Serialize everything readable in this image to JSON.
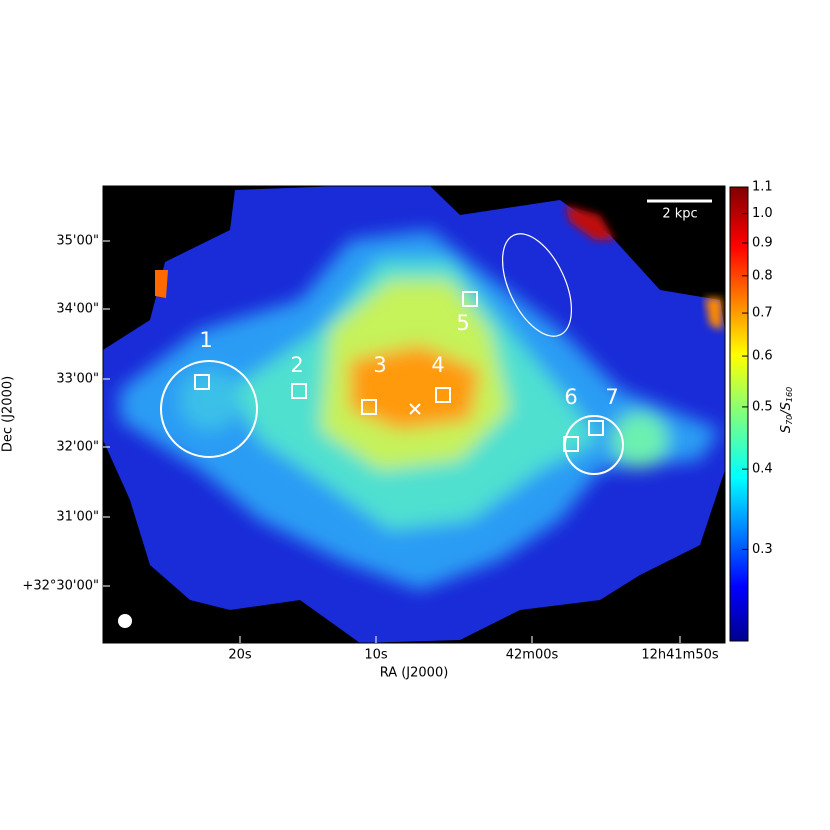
{
  "axes": {
    "xlabel": "RA (J2000)",
    "ylabel": "Dec (J2000)",
    "xticks": [
      "20s",
      "10s",
      "42m00s",
      "12h41m50s"
    ],
    "yticks": [
      "35'00\"",
      "34'00\"",
      "33'00\"",
      "32'00\"",
      "31'00\"",
      "+32°30'00\""
    ]
  },
  "colorbar": {
    "label": [
      "S",
      "70",
      "/S",
      "160"
    ],
    "scale": "log",
    "lim": [
      0.216,
      1.1
    ],
    "ticks": [
      0.3,
      0.4,
      0.5,
      0.6,
      0.7,
      0.8,
      0.9,
      {
        "value": 1,
        "label": "1.0"
      },
      1.1
    ]
  },
  "regions": [
    "1",
    "2",
    "3",
    "4",
    "5",
    "6",
    "7"
  ],
  "scale_bar": "2 kpc"
}
